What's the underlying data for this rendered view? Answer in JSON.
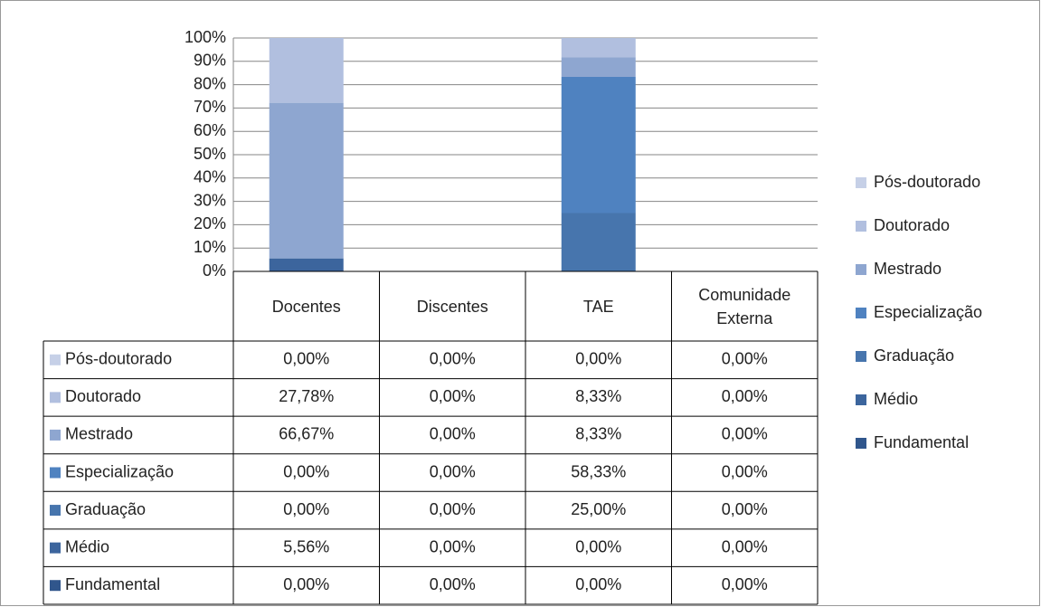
{
  "chart_data": {
    "type": "stacked_bar_100",
    "categories": [
      "Docentes",
      "Discentes",
      "TAE",
      "Comunidade Externa"
    ],
    "series": [
      {
        "name": "Pós-doutorado",
        "color": "#c6d0e7",
        "values": [
          0,
          0,
          0,
          0
        ],
        "value_labels": [
          "0,00%",
          "0,00%",
          "0,00%",
          "0,00%"
        ]
      },
      {
        "name": "Doutorado",
        "color": "#b1bfdf",
        "values": [
          27.78,
          0,
          8.33,
          0
        ],
        "value_labels": [
          "27,78%",
          "0,00%",
          "8,33%",
          "0,00%"
        ]
      },
      {
        "name": "Mestrado",
        "color": "#8ea6d0",
        "values": [
          66.67,
          0,
          8.33,
          0
        ],
        "value_labels": [
          "66,67%",
          "0,00%",
          "8,33%",
          "0,00%"
        ]
      },
      {
        "name": "Especialização",
        "color": "#4f82c0",
        "values": [
          0,
          0,
          58.33,
          0
        ],
        "value_labels": [
          "0,00%",
          "0,00%",
          "58,33%",
          "0,00%"
        ]
      },
      {
        "name": "Graduação",
        "color": "#4775ad",
        "values": [
          0,
          0,
          25,
          0
        ],
        "value_labels": [
          "0,00%",
          "0,00%",
          "25,00%",
          "0,00%"
        ]
      },
      {
        "name": "Médio",
        "color": "#3c659d",
        "values": [
          5.56,
          0,
          0,
          0
        ],
        "value_labels": [
          "5,56%",
          "0,00%",
          "0,00%",
          "0,00%"
        ]
      },
      {
        "name": "Fundamental",
        "color": "#30568c",
        "values": [
          0,
          0,
          0,
          0
        ],
        "value_labels": [
          "0,00%",
          "0,00%",
          "0,00%",
          "0,00%"
        ]
      }
    ],
    "ylim": [
      0,
      100
    ],
    "yticks": [
      {
        "value": 0,
        "label": "0%"
      },
      {
        "value": 10,
        "label": "10%"
      },
      {
        "value": 20,
        "label": "20%"
      },
      {
        "value": 30,
        "label": "30%"
      },
      {
        "value": 40,
        "label": "40%"
      },
      {
        "value": 50,
        "label": "50%"
      },
      {
        "value": 60,
        "label": "60%"
      },
      {
        "value": 70,
        "label": "70%"
      },
      {
        "value": 80,
        "label": "80%"
      },
      {
        "value": 90,
        "label": "90%"
      },
      {
        "value": 100,
        "label": "100%"
      }
    ],
    "grid": true,
    "legend": "right"
  }
}
